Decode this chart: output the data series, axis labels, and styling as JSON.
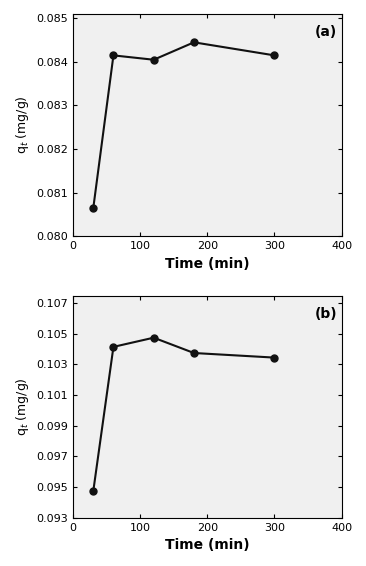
{
  "panel_a": {
    "x": [
      30,
      60,
      120,
      180,
      300
    ],
    "y": [
      0.08065,
      0.08415,
      0.08405,
      0.08445,
      0.08415
    ],
    "ylim": [
      0.08,
      0.0851
    ],
    "yticks": [
      0.08,
      0.081,
      0.082,
      0.083,
      0.084,
      0.085
    ],
    "label": "(a)"
  },
  "panel_b": {
    "x": [
      30,
      60,
      120,
      180,
      300
    ],
    "y": [
      0.09475,
      0.10415,
      0.10475,
      0.10375,
      0.10345
    ],
    "ylim": [
      0.093,
      0.1075
    ],
    "yticks": [
      0.093,
      0.095,
      0.097,
      0.099,
      0.101,
      0.103,
      0.105,
      0.107
    ],
    "label": "(b)"
  },
  "xlim": [
    0,
    400
  ],
  "xticks": [
    0,
    100,
    200,
    300,
    400
  ],
  "xlabel_a": "Time (min)",
  "xlabel_b": "Time (min)",
  "ylabel": "q$_t$ (mg/g)",
  "line_color": "#111111",
  "marker": "o",
  "markersize": 5,
  "markerfacecolor": "#111111",
  "linewidth": 1.5,
  "bg_color": "#ffffff",
  "plot_bg": "#f0f0f0"
}
